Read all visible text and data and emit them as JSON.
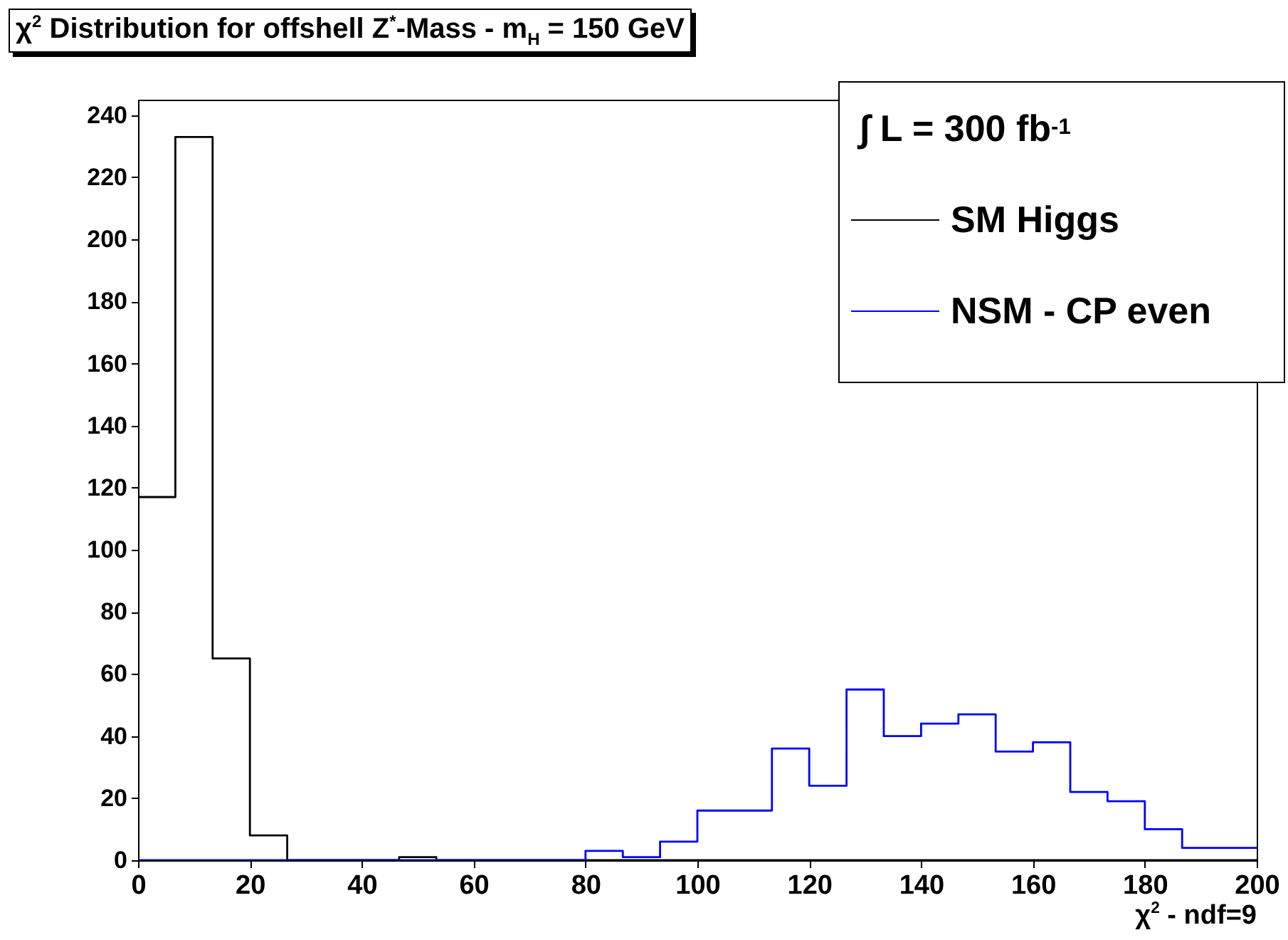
{
  "chart_data": {
    "type": "histogram",
    "title": "χ$^{2}$ Distribution for offshell Z$^{*}$-Mass - m$_{H}$ = 150 GeV",
    "xlabel": "χ$^{2}$ - ndf=9",
    "legend_title": "∫ L = 300 fb$^{-1}$",
    "bins": [
      0,
      6.67,
      13.33,
      20,
      26.67,
      33.33,
      40,
      46.67,
      53.33,
      60,
      66.67,
      73.33,
      80,
      86.67,
      93.33,
      100,
      106.67,
      113.33,
      120,
      126.67,
      133.33,
      140,
      146.67,
      153.33,
      160,
      166.67,
      173.33,
      180,
      186.67,
      193.33,
      200
    ],
    "series": [
      {
        "name": "SM Higgs",
        "color": "#000000",
        "values": [
          117,
          233,
          65,
          8,
          0,
          0,
          0,
          1,
          0,
          0,
          0,
          0,
          0,
          0,
          0,
          0,
          0,
          0,
          0,
          0,
          0,
          0,
          0,
          0,
          0,
          0,
          0,
          0,
          0,
          0
        ]
      },
      {
        "name": "NSM - CP even",
        "color": "#0000ff",
        "values": [
          0,
          0,
          0,
          0,
          0,
          0,
          0,
          0,
          0,
          0,
          0,
          0,
          3,
          1,
          6,
          16,
          16,
          36,
          24,
          55,
          40,
          44,
          47,
          35,
          38,
          22,
          19,
          10,
          4,
          4
        ]
      }
    ],
    "xlim": [
      0,
      200
    ],
    "xticks": [
      0,
      20,
      40,
      60,
      80,
      100,
      120,
      140,
      160,
      180,
      200
    ],
    "ylim": [
      0,
      245
    ],
    "yticks": [
      0,
      20,
      40,
      60,
      80,
      100,
      120,
      140,
      160,
      180,
      200,
      220,
      240
    ],
    "grid": false,
    "legend": "top right"
  }
}
